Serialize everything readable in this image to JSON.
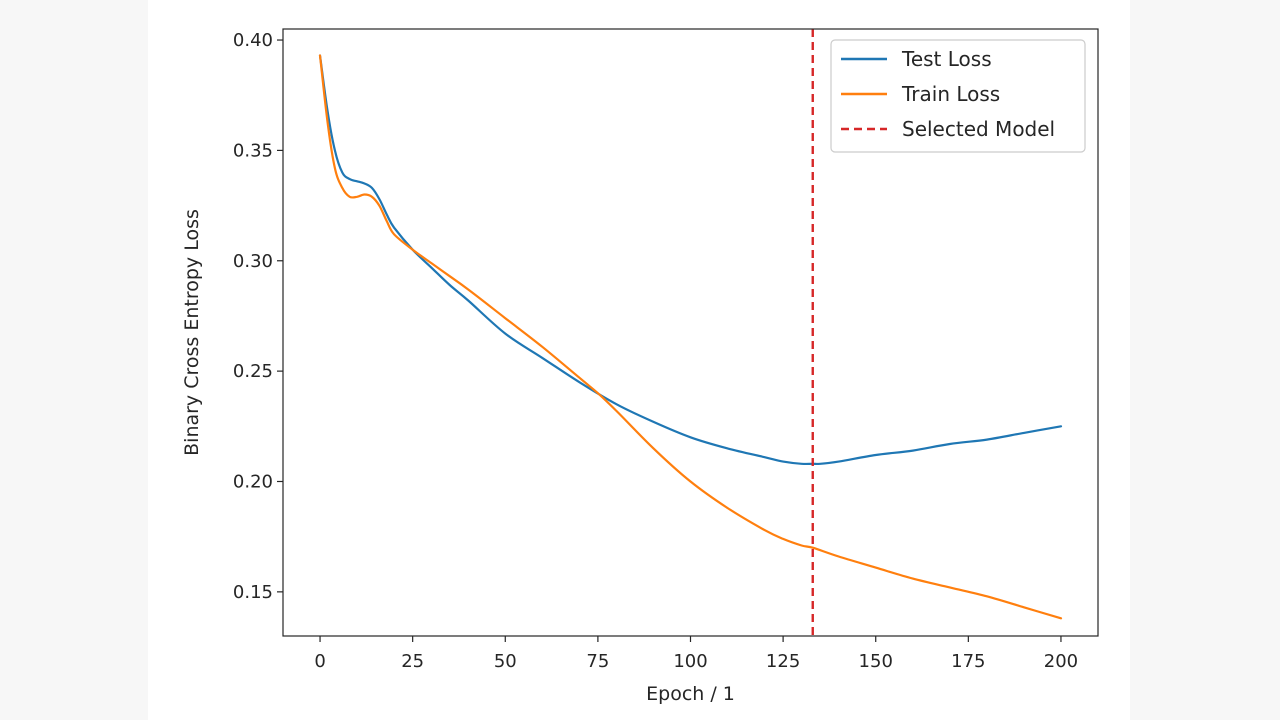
{
  "chart_data": {
    "type": "line",
    "title": "",
    "xlabel": "Epoch / 1",
    "ylabel": "Binary Cross Entropy Loss",
    "xlim": [
      -10,
      210
    ],
    "ylim": [
      0.13,
      0.405
    ],
    "xticks": [
      0,
      25,
      50,
      75,
      100,
      125,
      150,
      175,
      200
    ],
    "xtick_labels": [
      "0",
      "25",
      "50",
      "75",
      "100",
      "125",
      "150",
      "175",
      "200"
    ],
    "yticks": [
      0.15,
      0.2,
      0.25,
      0.3,
      0.35,
      0.4
    ],
    "ytick_labels": [
      "0.15",
      "0.20",
      "0.25",
      "0.30",
      "0.35",
      "0.40"
    ],
    "grid": false,
    "legend_position": "top-right",
    "series": [
      {
        "name": "Test Loss",
        "color": "#1f77b4",
        "x": [
          0,
          2,
          4,
          6,
          8,
          10,
          12,
          14,
          16,
          18,
          20,
          25,
          30,
          35,
          40,
          50,
          60,
          70,
          80,
          90,
          100,
          110,
          120,
          125,
          130,
          133,
          135,
          140,
          150,
          160,
          170,
          180,
          190,
          200
        ],
        "y": [
          0.393,
          0.368,
          0.35,
          0.34,
          0.337,
          0.336,
          0.335,
          0.333,
          0.328,
          0.321,
          0.315,
          0.305,
          0.297,
          0.289,
          0.282,
          0.267,
          0.256,
          0.245,
          0.235,
          0.227,
          0.22,
          0.215,
          0.211,
          0.209,
          0.208,
          0.208,
          0.208,
          0.209,
          0.212,
          0.214,
          0.217,
          0.219,
          0.222,
          0.225
        ]
      },
      {
        "name": "Train Loss",
        "color": "#ff7f0e",
        "x": [
          0,
          2,
          4,
          6,
          8,
          10,
          12,
          14,
          16,
          18,
          20,
          25,
          30,
          35,
          40,
          50,
          60,
          70,
          75,
          80,
          90,
          100,
          110,
          120,
          125,
          130,
          133,
          140,
          150,
          160,
          170,
          180,
          190,
          200
        ],
        "y": [
          0.393,
          0.363,
          0.342,
          0.333,
          0.329,
          0.329,
          0.33,
          0.329,
          0.325,
          0.318,
          0.312,
          0.305,
          0.299,
          0.293,
          0.287,
          0.274,
          0.261,
          0.247,
          0.24,
          0.232,
          0.215,
          0.2,
          0.188,
          0.178,
          0.174,
          0.171,
          0.17,
          0.166,
          0.161,
          0.156,
          0.152,
          0.148,
          0.143,
          0.138
        ]
      }
    ],
    "vlines": [
      {
        "name": "Selected Model",
        "x": 133,
        "color": "#d62728",
        "style": "dashed"
      }
    ]
  }
}
